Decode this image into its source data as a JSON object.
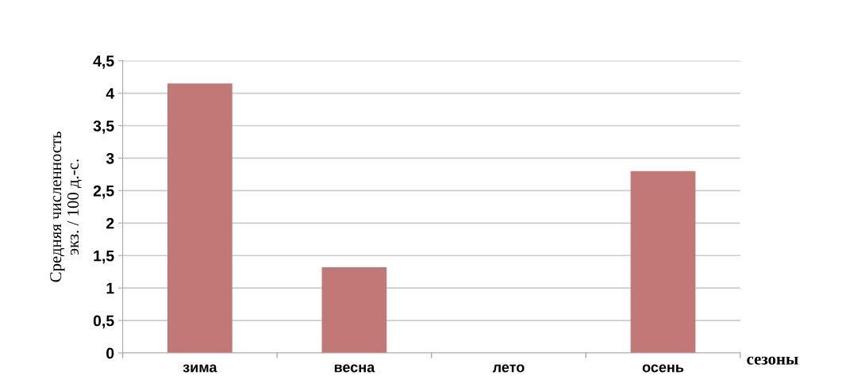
{
  "chart_data": {
    "type": "bar",
    "categories": [
      "зима",
      "весна",
      "лето",
      "осень"
    ],
    "values": [
      4.15,
      1.32,
      0,
      2.8
    ],
    "color": "#c27876",
    "ylabel": "Средняя численность\nэкз. / 100 д.-с.",
    "xlabel": "сезоны",
    "ylim": [
      0,
      4.5
    ],
    "yticks": [
      0,
      {
        "value": 0.5,
        "label": "0,5"
      },
      1,
      {
        "value": 1.5,
        "label": "1,5"
      },
      2,
      {
        "value": 2.5,
        "label": "2,5"
      },
      3,
      {
        "value": 3.5,
        "label": "3,5"
      },
      4,
      {
        "value": 4.5,
        "label": "4,5"
      }
    ],
    "grid": "y"
  }
}
